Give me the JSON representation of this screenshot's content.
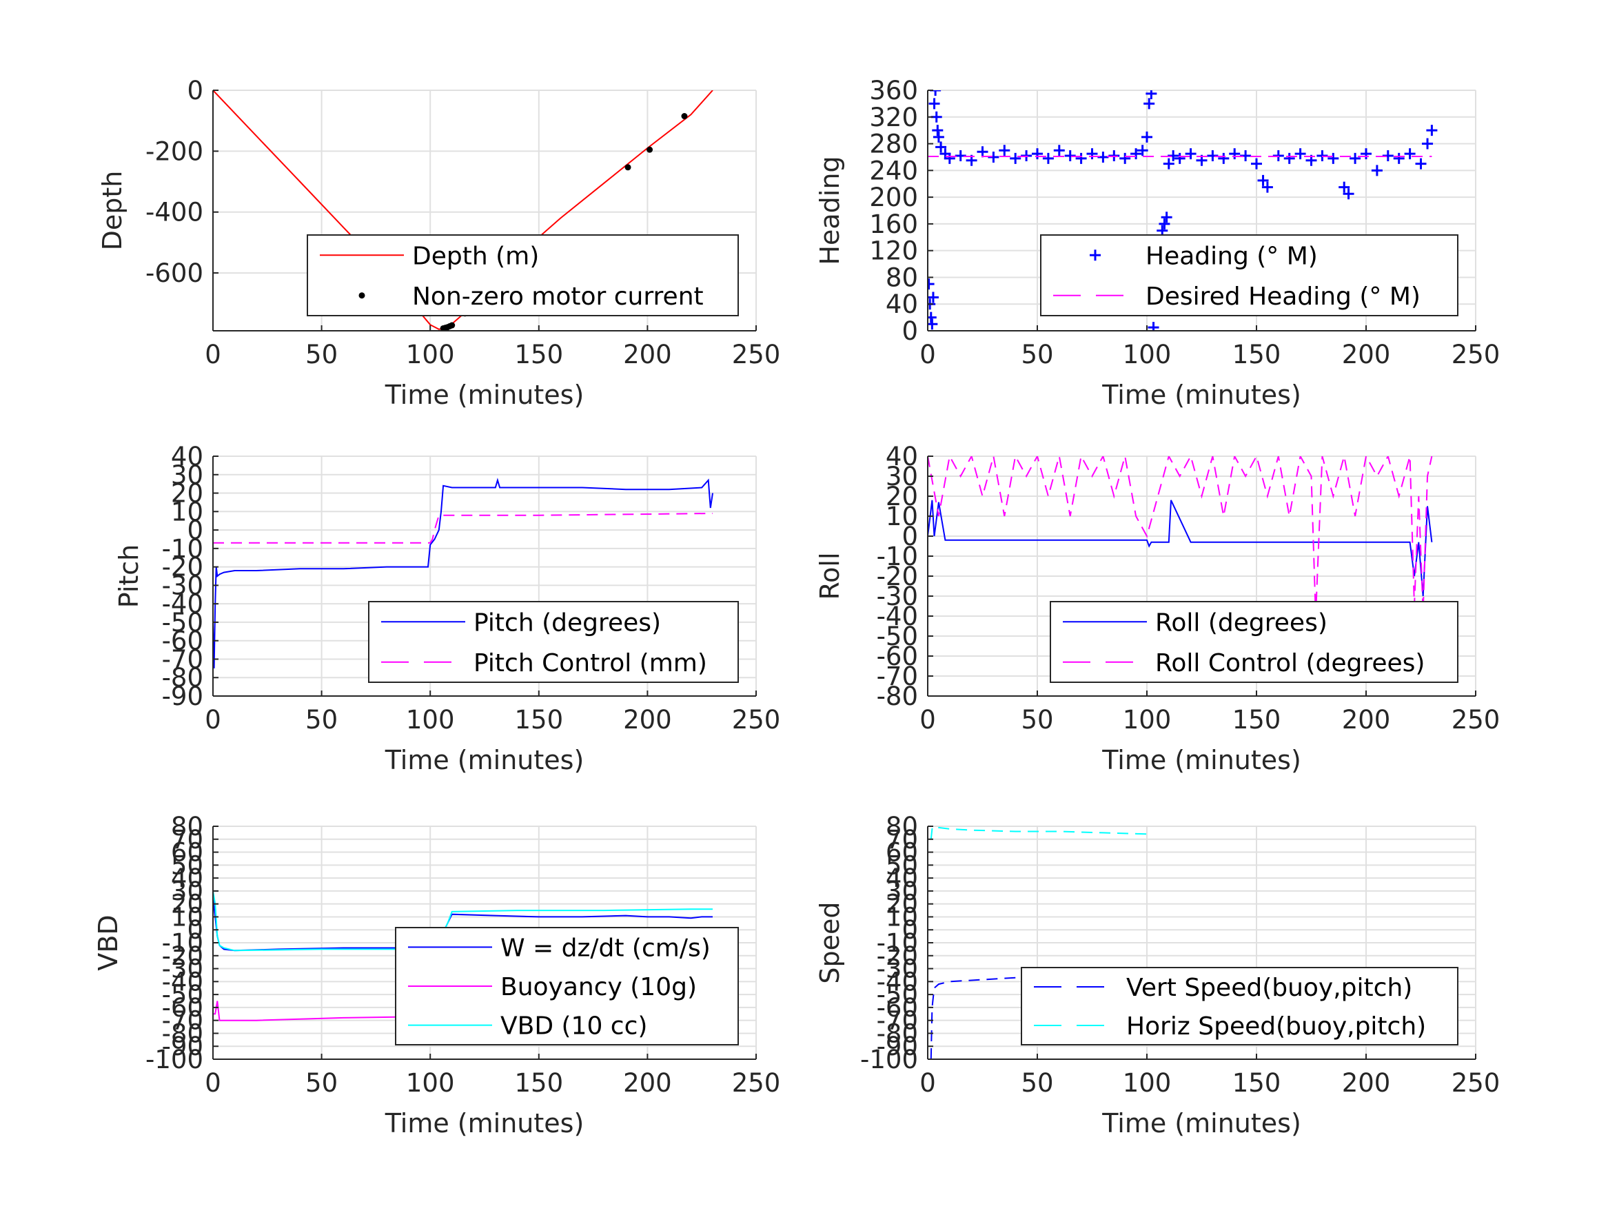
{
  "chart_data": [
    {
      "id": "depth",
      "type": "line",
      "xlabel": "Time (minutes)",
      "ylabel": "Depth",
      "xlim": [
        0,
        250
      ],
      "ylim": [
        -790,
        0
      ],
      "xticks": [
        0,
        50,
        100,
        150,
        200,
        250
      ],
      "yticks": [
        0,
        -200,
        -400,
        -600
      ],
      "ytick_labels": [
        "0",
        "-200",
        "-400",
        "-600"
      ],
      "grid": true,
      "legend": "bottom-right",
      "series": [
        {
          "name": "Depth (m)",
          "color": "#ff0000",
          "style": "solid",
          "x": [
            0,
            20,
            40,
            60,
            80,
            100,
            104,
            108,
            120,
            140,
            160,
            180,
            200,
            220,
            230
          ],
          "y": [
            0,
            -150,
            -300,
            -450,
            -600,
            -770,
            -785,
            -780,
            -705,
            -545,
            -420,
            -305,
            -190,
            -80,
            0
          ]
        },
        {
          "name": "Non-zero motor current",
          "color": "#000000",
          "style": "dot",
          "x": [
            106,
            107,
            108,
            109,
            110,
            116,
            133,
            191,
            201,
            217
          ],
          "y": [
            -782,
            -780,
            -778,
            -775,
            -772,
            -733,
            -627,
            -253,
            -195,
            -85
          ]
        }
      ]
    },
    {
      "id": "heading",
      "type": "scatter",
      "xlabel": "Time (minutes)",
      "ylabel": "Heading",
      "xlim": [
        0,
        250
      ],
      "ylim": [
        0,
        360
      ],
      "xticks": [
        0,
        50,
        100,
        150,
        200,
        250
      ],
      "yticks": [
        0,
        40,
        80,
        120,
        160,
        200,
        240,
        280,
        320,
        360
      ],
      "grid": true,
      "legend": "bottom-right",
      "series": [
        {
          "name": "Heading (° M)",
          "color": "#0000ff",
          "style": "plus",
          "x": [
            0.5,
            1,
            1.5,
            2,
            2.5,
            3,
            3.5,
            4,
            4.5,
            5,
            6,
            8,
            10,
            15,
            20,
            25,
            30,
            35,
            40,
            45,
            50,
            55,
            60,
            65,
            70,
            75,
            80,
            85,
            90,
            95,
            98,
            100,
            101,
            102,
            103,
            104,
            105,
            106,
            107,
            108,
            109,
            110,
            112,
            115,
            120,
            125,
            130,
            135,
            140,
            145,
            150,
            153,
            155,
            160,
            165,
            170,
            175,
            180,
            185,
            190,
            192,
            195,
            200,
            205,
            210,
            215,
            220,
            225,
            228,
            230
          ],
          "y": [
            70,
            40,
            20,
            10,
            50,
            340,
            360,
            320,
            300,
            290,
            275,
            265,
            258,
            262,
            255,
            268,
            260,
            270,
            258,
            262,
            265,
            258,
            270,
            262,
            258,
            265,
            260,
            262,
            258,
            265,
            270,
            290,
            340,
            355,
            5,
            30,
            80,
            120,
            150,
            160,
            170,
            250,
            262,
            258,
            265,
            255,
            262,
            258,
            265,
            262,
            250,
            225,
            215,
            262,
            258,
            265,
            255,
            262,
            258,
            215,
            205,
            258,
            265,
            240,
            262,
            258,
            265,
            250,
            280,
            300
          ]
        },
        {
          "name": "Desired Heading (° M)",
          "color": "#ff00ff",
          "style": "dash",
          "x": [
            0,
            230
          ],
          "y": [
            261,
            261
          ]
        }
      ]
    },
    {
      "id": "pitch",
      "type": "line",
      "xlabel": "Time (minutes)",
      "ylabel": "Pitch",
      "xlim": [
        0,
        250
      ],
      "ylim": [
        -90,
        40
      ],
      "xticks": [
        0,
        50,
        100,
        150,
        200,
        250
      ],
      "yticks": [
        40,
        30,
        20,
        10,
        0,
        -10,
        -20,
        -30,
        -40,
        -50,
        -60,
        -70,
        -80,
        -90
      ],
      "grid": true,
      "legend": "bottom-right",
      "series": [
        {
          "name": "Pitch (degrees)",
          "color": "#0000ff",
          "style": "solid",
          "x": [
            0,
            0.5,
            1,
            1.5,
            2,
            3,
            5,
            10,
            20,
            40,
            60,
            80,
            99,
            100,
            102,
            104,
            105,
            106,
            110,
            130,
            131,
            132,
            150,
            170,
            190,
            210,
            225,
            228,
            229,
            230
          ],
          "y": [
            -50,
            -75,
            -40,
            -20,
            -25,
            -24,
            -23,
            -22,
            -22,
            -21,
            -21,
            -20,
            -20,
            -8,
            -5,
            0,
            10,
            24,
            23,
            23,
            27,
            23,
            23,
            23,
            22,
            22,
            23,
            27,
            12,
            20
          ]
        },
        {
          "name": "Pitch Control (mm)",
          "color": "#ff00ff",
          "style": "dash",
          "x": [
            0,
            100,
            101,
            102,
            104,
            105,
            150,
            230
          ],
          "y": [
            -7,
            -7,
            -5,
            0,
            8,
            8,
            8,
            9
          ]
        }
      ]
    },
    {
      "id": "roll",
      "type": "line",
      "xlabel": "Time (minutes)",
      "ylabel": "Roll",
      "xlim": [
        0,
        250
      ],
      "ylim": [
        -80,
        40
      ],
      "xticks": [
        0,
        50,
        100,
        150,
        200,
        250
      ],
      "yticks": [
        40,
        30,
        20,
        10,
        0,
        -10,
        -20,
        -30,
        -40,
        -50,
        -60,
        -70,
        -80
      ],
      "grid": true,
      "legend": "bottom-right",
      "series": [
        {
          "name": "Roll (degrees)",
          "color": "#0000ff",
          "style": "solid",
          "x": [
            0,
            2,
            3,
            5,
            8,
            20,
            40,
            60,
            80,
            100,
            101,
            102,
            110,
            111,
            120,
            140,
            160,
            180,
            200,
            220,
            222,
            224,
            226,
            228,
            230
          ],
          "y": [
            0,
            18,
            0,
            17,
            -2,
            -2,
            -2,
            -2,
            -2,
            -2,
            -5,
            -3,
            -3,
            18,
            -3,
            -3,
            -3,
            -3,
            -3,
            -3,
            -20,
            -3,
            -30,
            15,
            -3
          ]
        },
        {
          "name": "Roll Control (degrees)",
          "color": "#ff00ff",
          "style": "dash",
          "x": [
            0,
            5,
            10,
            15,
            20,
            25,
            30,
            35,
            40,
            45,
            50,
            55,
            60,
            65,
            70,
            75,
            80,
            85,
            90,
            95,
            100,
            110,
            115,
            120,
            125,
            130,
            135,
            140,
            145,
            150,
            155,
            160,
            165,
            170,
            175,
            177,
            180,
            185,
            190,
            195,
            200,
            205,
            210,
            215,
            220,
            222,
            224,
            226,
            228,
            230
          ],
          "y": [
            40,
            10,
            40,
            30,
            40,
            20,
            40,
            10,
            40,
            30,
            40,
            20,
            40,
            10,
            40,
            30,
            40,
            20,
            40,
            10,
            0,
            40,
            30,
            40,
            20,
            40,
            10,
            40,
            30,
            40,
            20,
            40,
            10,
            40,
            30,
            -40,
            40,
            20,
            40,
            10,
            40,
            30,
            40,
            20,
            40,
            -35,
            20,
            -38,
            30,
            40
          ]
        }
      ]
    },
    {
      "id": "vbd",
      "type": "line",
      "xlabel": "Time (minutes)",
      "ylabel": "VBD",
      "xlim": [
        0,
        250
      ],
      "ylim": [
        -100,
        80
      ],
      "xticks": [
        0,
        50,
        100,
        150,
        200,
        250
      ],
      "yticks": [
        80,
        70,
        60,
        50,
        40,
        30,
        20,
        10,
        0,
        -10,
        -20,
        -30,
        -40,
        -50,
        -60,
        -70,
        -80,
        -90,
        -100
      ],
      "grid": true,
      "legend": "bottom-right",
      "series": [
        {
          "name": "W = dz/dt (cm/s)",
          "color": "#0000ff",
          "style": "solid",
          "x": [
            0,
            1,
            2,
            3,
            5,
            10,
            30,
            60,
            90,
            100,
            102,
            105,
            108,
            110,
            130,
            150,
            170,
            190,
            200,
            210,
            220,
            225,
            230
          ],
          "y": [
            25,
            10,
            -5,
            -12,
            -15,
            -16,
            -15,
            -14,
            -14,
            -14,
            -10,
            -5,
            5,
            12,
            11,
            10,
            10,
            11,
            10,
            10,
            9,
            10,
            10
          ]
        },
        {
          "name": "Buoyancy (10g)",
          "color": "#ff00ff",
          "style": "solid",
          "x": [
            0,
            1,
            2,
            3,
            20,
            60,
            100
          ],
          "y": [
            -65,
            -65,
            -55,
            -70,
            -70,
            -68,
            -67
          ]
        },
        {
          "name": "VBD (10 cc)",
          "color": "#00ffff",
          "style": "solid",
          "x": [
            0,
            1,
            2,
            3,
            5,
            10,
            50,
            100,
            102,
            105,
            108,
            110,
            140,
            180,
            220,
            230
          ],
          "y": [
            30,
            20,
            -5,
            -12,
            -14,
            -16,
            -15,
            -15,
            -12,
            -5,
            5,
            14,
            15,
            15,
            16,
            16
          ]
        }
      ]
    },
    {
      "id": "speed",
      "type": "line",
      "xlabel": "Time (minutes)",
      "ylabel": "Speed",
      "xlim": [
        0,
        250
      ],
      "ylim": [
        -100,
        80
      ],
      "xticks": [
        0,
        50,
        100,
        150,
        200,
        250
      ],
      "yticks": [
        80,
        70,
        60,
        50,
        40,
        30,
        20,
        10,
        0,
        -10,
        -20,
        -30,
        -40,
        -50,
        -60,
        -70,
        -80,
        -90,
        -100
      ],
      "grid": true,
      "legend": "bottom-right",
      "series": [
        {
          "name": "Vert Speed(buoy,pitch)",
          "color": "#0000ff",
          "style": "dash",
          "x": [
            1.5,
            2,
            2.5,
            3,
            5,
            10,
            20,
            40,
            60,
            80,
            100
          ],
          "y": [
            -100,
            -60,
            -52,
            -45,
            -42,
            -40,
            -39,
            -37,
            -36,
            -35,
            -35
          ]
        },
        {
          "name": "Horiz Speed(buoy,pitch)",
          "color": "#00ffff",
          "style": "dash",
          "x": [
            1.5,
            2,
            3,
            5,
            10,
            20,
            40,
            60,
            80,
            100
          ],
          "y": [
            70,
            78,
            80,
            79,
            78,
            77,
            76,
            76,
            75,
            74
          ]
        }
      ]
    }
  ]
}
